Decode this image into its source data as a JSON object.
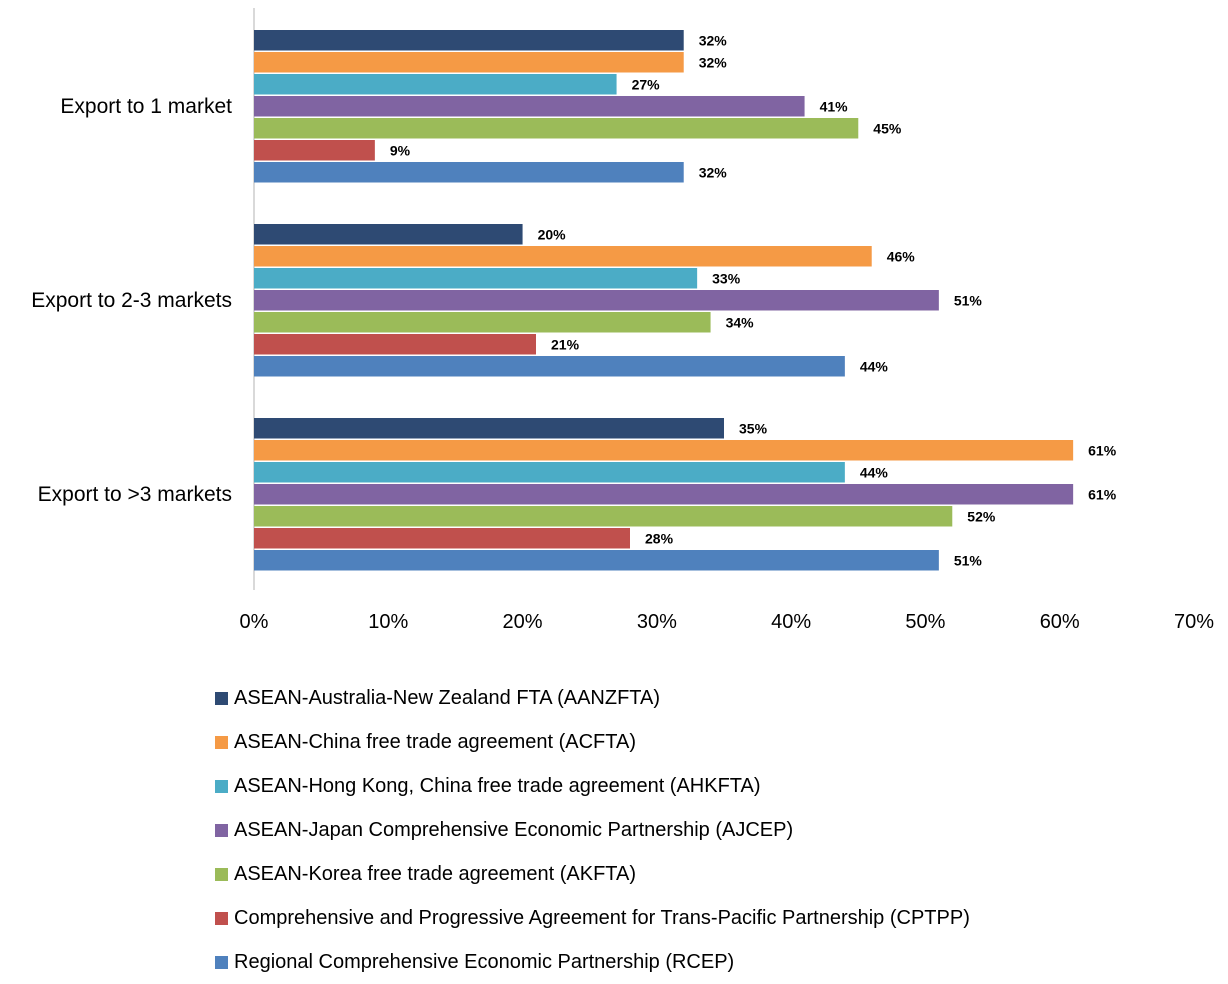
{
  "chart_data": {
    "type": "bar",
    "orientation": "horizontal",
    "categories": [
      "Export to 1 market",
      "Export to 2-3 markets",
      "Export to >3 markets"
    ],
    "series": [
      {
        "name": "ASEAN-Australia-New Zealand FTA (AANZFTA)",
        "color": "#2e4a73",
        "values": [
          32,
          20,
          35
        ],
        "labels": [
          "32%",
          "20%",
          "35%"
        ]
      },
      {
        "name": "ASEAN-China free trade agreement (ACFTA)",
        "color": "#f59a45",
        "values": [
          32,
          46,
          61
        ],
        "labels": [
          "32%",
          "46%",
          "61%"
        ]
      },
      {
        "name": "ASEAN-Hong Kong, China free trade agreement (AHKFTA)",
        "color": "#4bacc6",
        "values": [
          27,
          33,
          44
        ],
        "labels": [
          "27%",
          "33%",
          "44%"
        ]
      },
      {
        "name": "ASEAN-Japan Comprehensive Economic Partnership (AJCEP)",
        "color": "#8064a2",
        "values": [
          41,
          51,
          61
        ],
        "labels": [
          "41%",
          "51%",
          "61%"
        ]
      },
      {
        "name": "ASEAN-Korea free trade agreement (AKFTA)",
        "color": "#9bbb59",
        "values": [
          45,
          34,
          52
        ],
        "labels": [
          "45%",
          "34%",
          "52%"
        ]
      },
      {
        "name": "Comprehensive and Progressive Agreement for Trans-Pacific Partnership (CPTPP)",
        "color": "#c0504d",
        "values": [
          9,
          21,
          28
        ],
        "labels": [
          "9%",
          "21%",
          "28%"
        ]
      },
      {
        "name": "Regional Comprehensive Economic Partnership (RCEP)",
        "color": "#4f81bd",
        "values": [
          32,
          44,
          51
        ],
        "labels": [
          "32%",
          "44%",
          "51%"
        ]
      }
    ],
    "xlim": [
      0,
      70
    ],
    "xticks": [
      0,
      10,
      20,
      30,
      40,
      50,
      60,
      70
    ],
    "xtick_labels": [
      "0%",
      "10%",
      "20%",
      "30%",
      "40%",
      "50%",
      "60%",
      "70%"
    ],
    "title": "",
    "xlabel": "",
    "ylabel": "",
    "grid": false,
    "legend_position": "bottom"
  }
}
